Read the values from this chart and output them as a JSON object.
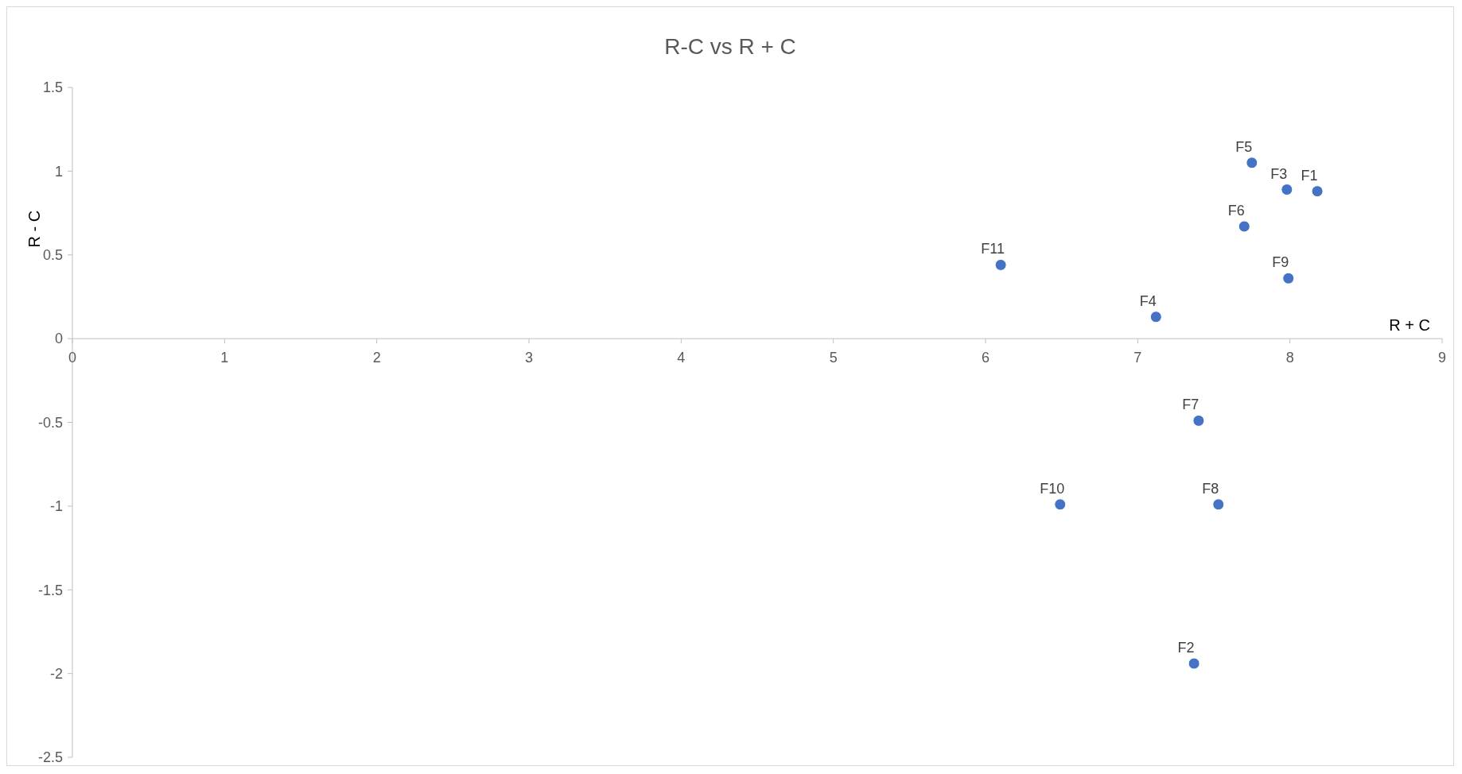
{
  "chart_data": {
    "type": "scatter",
    "title": "R-C vs R + C",
    "xlabel": "R + C",
    "ylabel": "R - C",
    "x": [
      8.18,
      7.37,
      7.98,
      7.12,
      7.75,
      7.7,
      7.4,
      7.53,
      7.99,
      6.49,
      6.1
    ],
    "series": [
      {
        "color": "#4472c4",
        "values": [
          0.88,
          -1.94,
          0.89,
          0.13,
          1.05,
          0.67,
          -0.49,
          -0.99,
          0.36,
          -0.99,
          0.44
        ]
      }
    ],
    "annotations": [
      {
        "text": "F1",
        "x": 8.18,
        "y": 0.88
      },
      {
        "text": "F2",
        "x": 7.37,
        "y": -1.94
      },
      {
        "text": "F3",
        "x": 7.98,
        "y": 0.89
      },
      {
        "text": "F4",
        "x": 7.12,
        "y": 0.13
      },
      {
        "text": "F5",
        "x": 7.75,
        "y": 1.05
      },
      {
        "text": "F6",
        "x": 7.7,
        "y": 0.67
      },
      {
        "text": "F7",
        "x": 7.4,
        "y": -0.49
      },
      {
        "text": "F8",
        "x": 7.53,
        "y": -0.99
      },
      {
        "text": "F9",
        "x": 7.99,
        "y": 0.36
      },
      {
        "text": "F10",
        "x": 6.49,
        "y": -0.99
      },
      {
        "text": "F11",
        "x": 6.1,
        "y": 0.44
      }
    ],
    "xlim": [
      0,
      9
    ],
    "xticks": [
      0,
      1,
      2,
      3,
      4,
      5,
      6,
      7,
      8,
      9
    ],
    "ylim": [
      -2.5,
      1.5
    ],
    "yticks": [
      -2.5,
      -2,
      -1.5,
      -1,
      -0.5,
      0,
      0.5,
      1,
      1.5
    ],
    "grid": false,
    "marker": "circle"
  }
}
